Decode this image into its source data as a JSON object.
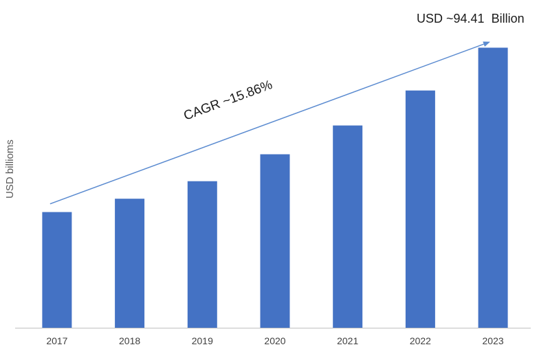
{
  "chart_data": {
    "type": "bar",
    "title": "",
    "xlabel": "",
    "ylabel": "USD billioms",
    "categories": [
      "2017",
      "2018",
      "2019",
      "2020",
      "2021",
      "2022",
      "2023"
    ],
    "series": [
      {
        "values": [
          39.0,
          43.5,
          49.4,
          58.5,
          68.2,
          80.0,
          94.41
        ]
      }
    ],
    "ylim": [
      0,
      101
    ],
    "grid": false,
    "legend": "none",
    "bar_color": "#4472C4",
    "annotations": {
      "cagr": "CAGR ~15.86%",
      "final_value": "USD ~94.41  Billion"
    },
    "arrow_color": "#5B8BD0"
  }
}
